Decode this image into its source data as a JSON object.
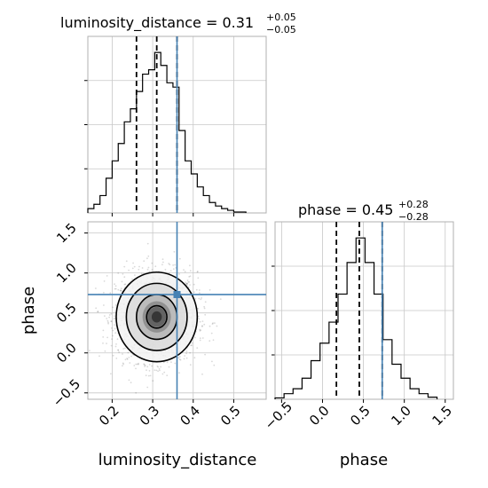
{
  "chart_data": {
    "type": "corner",
    "parameters": [
      "luminosity_distance",
      "phase"
    ],
    "truth": {
      "luminosity_distance": 0.36,
      "phase": 0.73
    },
    "truth_color": "#4682b4",
    "panels": [
      {
        "id": "hist-luminosity-distance",
        "type": "histogram",
        "parameter": "luminosity_distance",
        "title_main": "luminosity_distance = 0.31",
        "title_plus": "+0.05",
        "title_minus": "−0.05",
        "xlim": [
          0.14,
          0.58
        ],
        "bin_edges": [
          0.14,
          0.155,
          0.17,
          0.185,
          0.2,
          0.215,
          0.23,
          0.245,
          0.26,
          0.275,
          0.29,
          0.305,
          0.32,
          0.335,
          0.35,
          0.365,
          0.38,
          0.395,
          0.41,
          0.425,
          0.44,
          0.455,
          0.47,
          0.485,
          0.5,
          0.515,
          0.53
        ],
        "counts": [
          5,
          10,
          20,
          40,
          60,
          80,
          105,
          120,
          140,
          160,
          165,
          185,
          170,
          150,
          145,
          95,
          60,
          45,
          30,
          20,
          12,
          8,
          5,
          3,
          1,
          1
        ],
        "quantiles": [
          0.26,
          0.31,
          0.36
        ],
        "x_ticks": [
          0.2,
          0.3,
          0.4,
          0.5
        ]
      },
      {
        "id": "hist-phase",
        "type": "histogram",
        "parameter": "phase",
        "title_main": "phase = 0.45",
        "title_plus": "+0.28",
        "title_minus": "−0.28",
        "xlim": [
          -0.58,
          1.6
        ],
        "bin_edges": [
          -0.58,
          -0.47,
          -0.36,
          -0.25,
          -0.14,
          -0.03,
          0.08,
          0.19,
          0.3,
          0.41,
          0.52,
          0.63,
          0.74,
          0.85,
          0.96,
          1.07,
          1.18,
          1.29,
          1.4
        ],
        "counts": [
          2,
          8,
          15,
          30,
          55,
          80,
          110,
          150,
          195,
          230,
          195,
          150,
          85,
          50,
          30,
          15,
          8,
          3
        ],
        "quantiles": [
          0.17,
          0.45,
          0.73
        ],
        "x_ticks": [
          "−0.5",
          "0.0",
          "0.5",
          "1.0",
          "1.5"
        ],
        "x_tick_values": [
          -0.5,
          0.0,
          0.5,
          1.0,
          1.5
        ]
      },
      {
        "id": "joint-phase-vs-luminosity-distance",
        "type": "2d_density",
        "x_parameter": "luminosity_distance",
        "y_parameter": "phase",
        "xlim": [
          0.14,
          0.58
        ],
        "ylim": [
          -0.58,
          1.64
        ],
        "center": [
          0.31,
          0.45
        ],
        "sigma": [
          0.05,
          0.28
        ],
        "contour_sigmas": [
          0.5,
          1.0,
          1.5,
          2.0
        ],
        "x_ticks": [
          "0.2",
          "0.3",
          "0.4",
          "0.5"
        ],
        "x_tick_values": [
          0.2,
          0.3,
          0.4,
          0.5
        ],
        "y_ticks": [
          "−0.5",
          "0.0",
          "0.5",
          "1.0",
          "1.5"
        ],
        "y_tick_values": [
          -0.5,
          0.0,
          0.5,
          1.0,
          1.5
        ]
      }
    ],
    "xlabel_left": "luminosity_distance",
    "xlabel_right": "phase",
    "ylabel": "phase",
    "grid": true
  }
}
